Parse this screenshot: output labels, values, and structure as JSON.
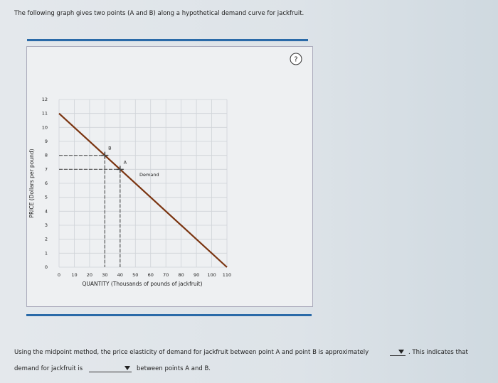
{
  "header": {
    "prompt": "The following graph gives two points (A and B) along a hypothetical demand curve for jackfruit."
  },
  "help_icon": "?",
  "chart": {
    "type": "line",
    "x_label": "QUANTITY (Thousands of pounds of jackfruit)",
    "y_label": "PRICE (Dollars per pound)",
    "xlim": [
      0,
      110
    ],
    "xticks": [
      0,
      10,
      20,
      30,
      40,
      50,
      60,
      70,
      80,
      90,
      100,
      110
    ],
    "ylim": [
      0,
      12
    ],
    "yticks": [
      0,
      1,
      2,
      3,
      4,
      5,
      6,
      7,
      8,
      9,
      10,
      11,
      12
    ],
    "grid": true,
    "series": [
      {
        "name": "Demand",
        "color": "#7a3410",
        "x": [
          0,
          110
        ],
        "values": [
          11,
          0
        ]
      }
    ],
    "points": [
      {
        "label": "A",
        "x": 40,
        "y": 7
      },
      {
        "label": "B",
        "x": 30,
        "y": 8
      }
    ]
  },
  "question": {
    "part1": "Using the midpoint method, the price elasticity of demand for jackfruit between point A and point B is approximately",
    "part2": ". This indicates that",
    "part3": "demand for jackfruit is",
    "part4": "between points A and B."
  }
}
